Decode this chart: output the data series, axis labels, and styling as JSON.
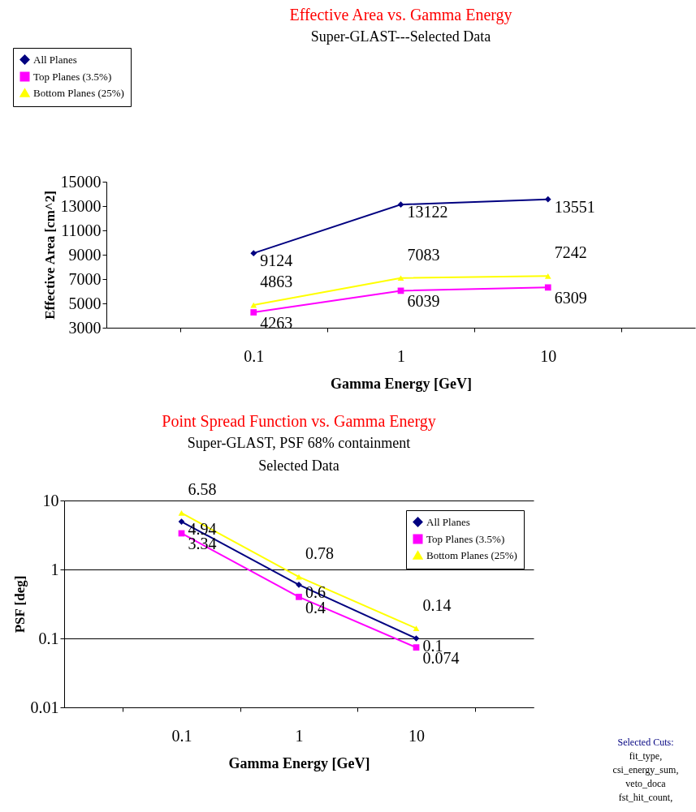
{
  "chart_data": [
    {
      "type": "line",
      "title": "Effective Area vs. Gamma Energy",
      "subtitle": "Super-GLAST---Selected Data",
      "xlabel": "Gamma Energy [GeV]",
      "ylabel": "Effective Area [cm^2]",
      "categories": [
        "0.1",
        "1",
        "10"
      ],
      "series": [
        {
          "name": "All Planes",
          "color": "#000080",
          "marker": "diamond",
          "values": [
            9124,
            13122,
            13551
          ]
        },
        {
          "name": "Top Planes (3.5%)",
          "color": "#ff00ff",
          "marker": "square",
          "values": [
            4263,
            6039,
            6309
          ]
        },
        {
          "name": "Bottom Planes (25%)",
          "color": "#ffff00",
          "marker": "triangle",
          "values": [
            4863,
            7083,
            7242
          ]
        }
      ],
      "ylim": [
        3000,
        15000
      ],
      "yticks": [
        3000,
        5000,
        7000,
        9000,
        11000,
        13000,
        15000
      ],
      "grid": false,
      "legend": "top left",
      "data_labels": true
    },
    {
      "type": "line",
      "title": "Point Spread Function vs. Gamma Energy",
      "subtitle": "Super-GLAST, PSF 68% containment\nSelected Data",
      "xlabel": "Gamma Energy [GeV]",
      "ylabel": "PSF [deg]",
      "categories": [
        "0.1",
        "1",
        "10"
      ],
      "series": [
        {
          "name": "All Planes",
          "color": "#000080",
          "marker": "diamond",
          "values": [
            4.94,
            0.6,
            0.1
          ]
        },
        {
          "name": "Top Planes (3.5%)",
          "color": "#ff00ff",
          "marker": "square",
          "values": [
            3.34,
            0.4,
            0.074
          ]
        },
        {
          "name": "Bottom Planes (25%)",
          "color": "#ffff00",
          "marker": "triangle",
          "values": [
            6.58,
            0.78,
            0.14
          ]
        }
      ],
      "ylim": [
        0.01,
        10
      ],
      "yticks": [
        0.01,
        0.1,
        1,
        10
      ],
      "log": true,
      "grid": "y",
      "legend": "top right",
      "data_labels": true,
      "annotations": [
        "Selected Cuts:",
        "fit_type,",
        "csi_energy_sum,",
        "veto_doca",
        "fst_hit_count,"
      ]
    }
  ]
}
